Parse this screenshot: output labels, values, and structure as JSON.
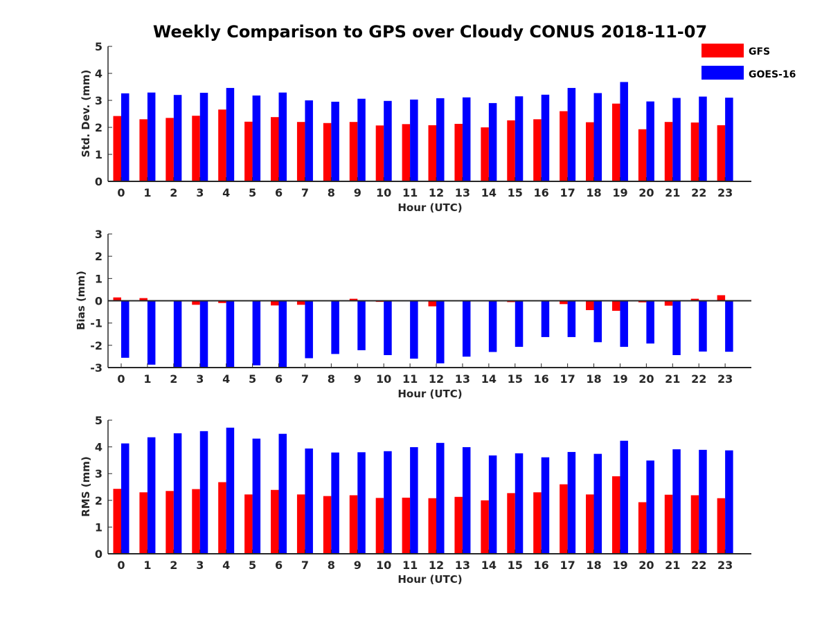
{
  "title": "Weekly Comparison to GPS over Cloudy CONUS 2018-11-07",
  "legend": [
    {
      "name": "GFS",
      "color": "#ff0000"
    },
    {
      "name": "GOES-16",
      "color": "#0000ff"
    }
  ],
  "chart_data": [
    {
      "type": "bar",
      "xlabel": "Hour (UTC)",
      "ylabel": "Std. Dev. (mm)",
      "ylim": [
        0,
        5
      ],
      "yticks": [
        0,
        1,
        2,
        3,
        4,
        5
      ],
      "categories": [
        "0",
        "1",
        "2",
        "3",
        "4",
        "5",
        "6",
        "7",
        "8",
        "9",
        "10",
        "11",
        "12",
        "13",
        "14",
        "15",
        "16",
        "17",
        "18",
        "19",
        "20",
        "21",
        "22",
        "23"
      ],
      "series": [
        {
          "name": "GFS",
          "color": "#ff0000",
          "values": [
            2.42,
            2.3,
            2.35,
            2.43,
            2.66,
            2.21,
            2.38,
            2.2,
            2.16,
            2.2,
            2.07,
            2.12,
            2.08,
            2.13,
            2.0,
            2.26,
            2.3,
            2.6,
            2.19,
            2.88,
            1.93,
            2.2,
            2.18,
            2.08
          ]
        },
        {
          "name": "GOES-16",
          "color": "#0000ff",
          "values": [
            3.26,
            3.29,
            3.2,
            3.28,
            3.46,
            3.18,
            3.29,
            3.0,
            2.95,
            3.06,
            2.98,
            3.03,
            3.08,
            3.11,
            2.9,
            3.15,
            3.21,
            3.46,
            3.27,
            3.68,
            2.96,
            3.09,
            3.14,
            3.1
          ]
        }
      ]
    },
    {
      "type": "bar",
      "xlabel": "Hour (UTC)",
      "ylabel": "Bias (mm)",
      "ylim": [
        -3,
        3
      ],
      "yticks": [
        -3,
        -2,
        -1,
        0,
        1,
        2,
        3
      ],
      "categories": [
        "0",
        "1",
        "2",
        "3",
        "4",
        "5",
        "6",
        "7",
        "8",
        "9",
        "10",
        "11",
        "12",
        "13",
        "14",
        "15",
        "16",
        "17",
        "18",
        "19",
        "20",
        "21",
        "22",
        "23"
      ],
      "series": [
        {
          "name": "GFS",
          "color": "#ff0000",
          "values": [
            0.15,
            0.12,
            -0.03,
            -0.18,
            -0.1,
            -0.02,
            -0.21,
            -0.18,
            -0.01,
            0.09,
            -0.05,
            0.01,
            -0.25,
            -0.01,
            -0.03,
            -0.06,
            -0.02,
            -0.15,
            -0.42,
            -0.45,
            -0.07,
            -0.22,
            0.09,
            0.25
          ]
        },
        {
          "name": "GOES-16",
          "color": "#0000ff",
          "values": [
            -2.56,
            -2.87,
            -3.0,
            -3.0,
            -3.0,
            -2.9,
            -3.0,
            -2.58,
            -2.39,
            -2.22,
            -2.44,
            -2.6,
            -2.81,
            -2.51,
            -2.3,
            -2.07,
            -1.63,
            -1.63,
            -1.86,
            -2.07,
            -1.92,
            -2.44,
            -2.28,
            -2.29
          ]
        }
      ]
    },
    {
      "type": "bar",
      "xlabel": "Hour (UTC)",
      "ylabel": "RMS (mm)",
      "ylim": [
        0,
        5
      ],
      "yticks": [
        0,
        1,
        2,
        3,
        4,
        5
      ],
      "categories": [
        "0",
        "1",
        "2",
        "3",
        "4",
        "5",
        "6",
        "7",
        "8",
        "9",
        "10",
        "11",
        "12",
        "13",
        "14",
        "15",
        "16",
        "17",
        "18",
        "19",
        "20",
        "21",
        "22",
        "23"
      ],
      "series": [
        {
          "name": "GFS",
          "color": "#ff0000",
          "values": [
            2.43,
            2.3,
            2.35,
            2.42,
            2.68,
            2.22,
            2.39,
            2.22,
            2.16,
            2.19,
            2.09,
            2.1,
            2.08,
            2.13,
            2.0,
            2.27,
            2.3,
            2.6,
            2.22,
            2.9,
            1.93,
            2.21,
            2.19,
            2.08
          ]
        },
        {
          "name": "GOES-16",
          "color": "#0000ff",
          "values": [
            4.13,
            4.36,
            4.51,
            4.59,
            4.72,
            4.31,
            4.49,
            3.94,
            3.79,
            3.8,
            3.84,
            3.99,
            4.15,
            3.99,
            3.68,
            3.76,
            3.61,
            3.81,
            3.74,
            4.23,
            3.49,
            3.91,
            3.89,
            3.87
          ]
        }
      ]
    }
  ]
}
